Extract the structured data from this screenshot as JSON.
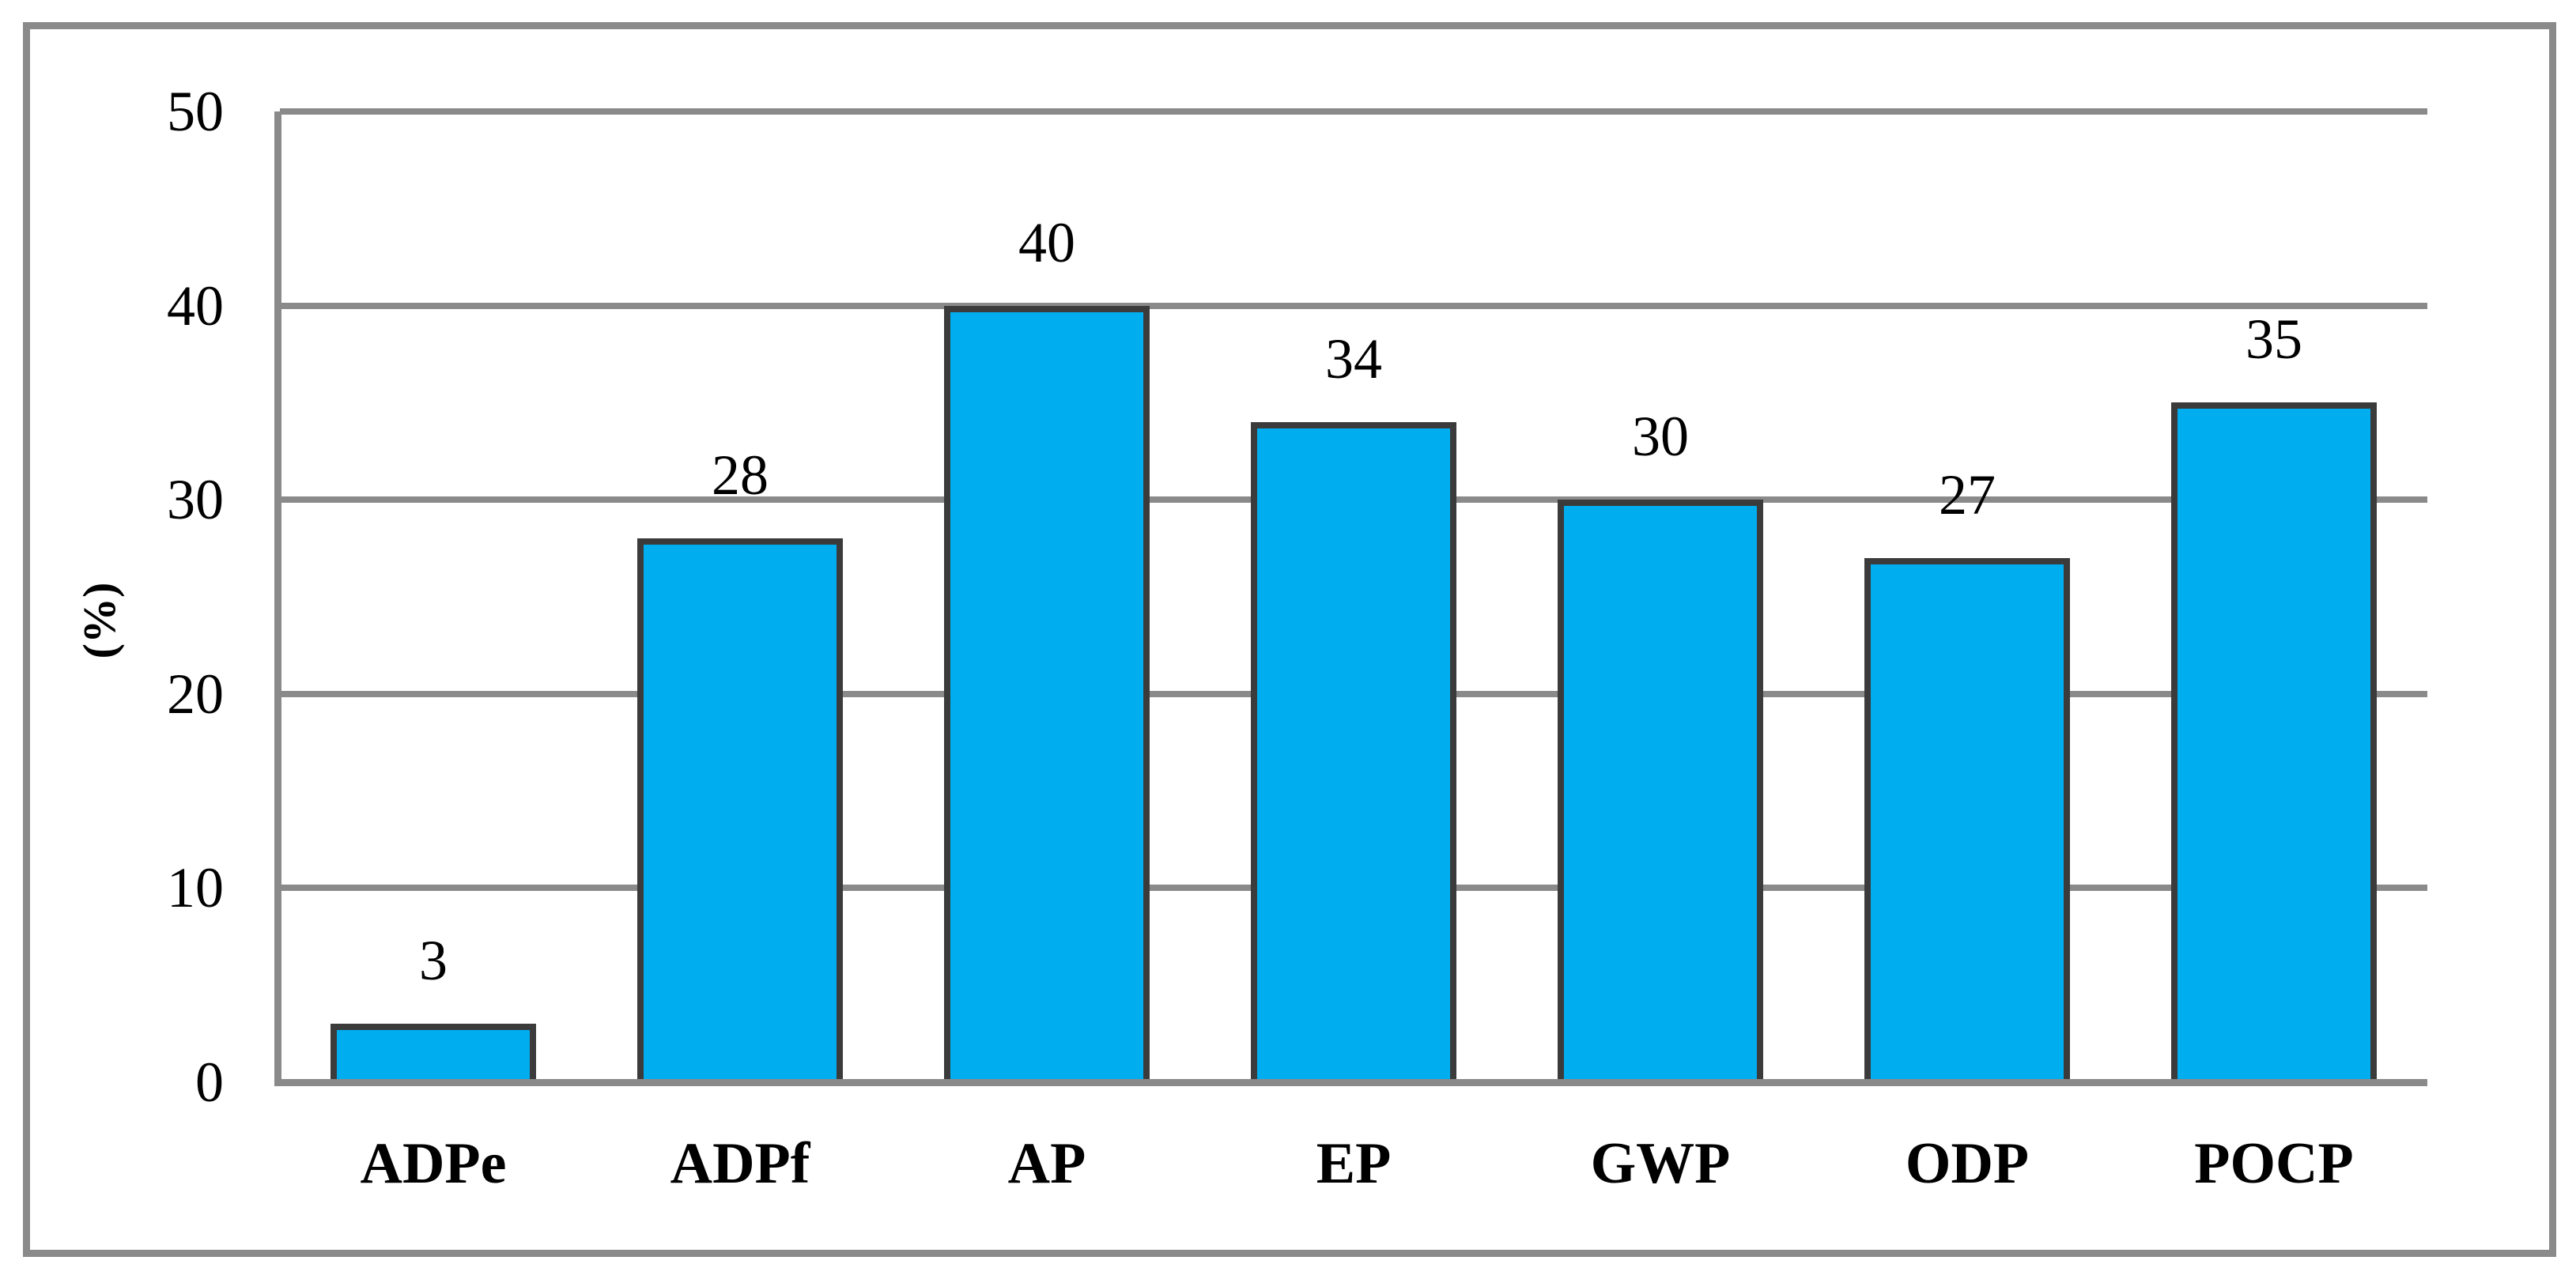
{
  "chart_data": {
    "type": "bar",
    "categories": [
      "ADPe",
      "ADPf",
      "AP",
      "EP",
      "GWP",
      "ODP",
      "POCP"
    ],
    "values": [
      3,
      28,
      40,
      34,
      30,
      27,
      35
    ],
    "title": "",
    "xlabel": "",
    "ylabel": "(%)",
    "ylim": [
      0,
      50
    ],
    "yticks": [
      0,
      10,
      20,
      30,
      40,
      50
    ],
    "grid": true,
    "legend": "none",
    "bar_color": "#00AEF0",
    "bar_border_color": "#3B3B3B",
    "grid_color": "#8A8A8A",
    "frame_color": "#8A8A8A",
    "text_color": "#000000"
  }
}
